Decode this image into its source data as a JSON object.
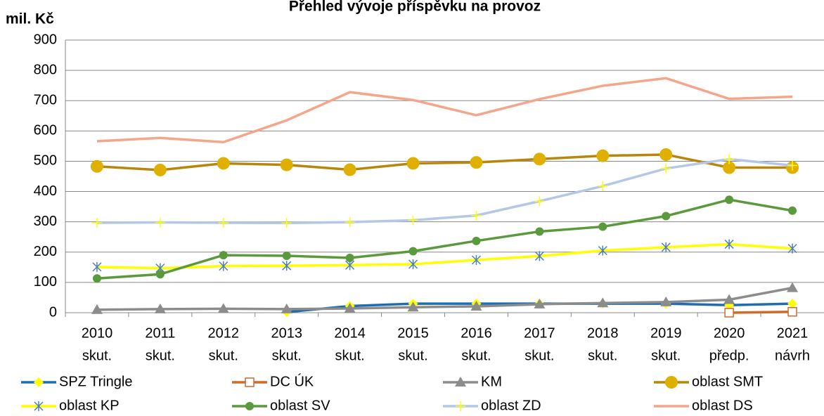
{
  "chart_data": {
    "type": "line",
    "title": "Přehled vývoje příspěvku na provoz",
    "y_label": "mil. Kč",
    "categories": [
      [
        "2010",
        "skut."
      ],
      [
        "2011",
        "skut."
      ],
      [
        "2012",
        "skut."
      ],
      [
        "2013",
        "skut."
      ],
      [
        "2014",
        "skut."
      ],
      [
        "2015",
        "skut."
      ],
      [
        "2016",
        "skut."
      ],
      [
        "2017",
        "skut."
      ],
      [
        "2018",
        "skut."
      ],
      [
        "2019",
        "skut."
      ],
      [
        "2020",
        "předp."
      ],
      [
        "2021",
        "návrh"
      ]
    ],
    "ylim": [
      0,
      900
    ],
    "yticks": [
      0,
      100,
      200,
      300,
      400,
      500,
      600,
      700,
      800,
      900
    ],
    "grid": true,
    "series": [
      {
        "name": "SPZ Tringle",
        "color": "#1f6cb0",
        "marker": "diamond",
        "marker_color": "#ffff00",
        "values": [
          null,
          null,
          null,
          2,
          22,
          30,
          30,
          30,
          30,
          30,
          25,
          30
        ]
      },
      {
        "name": "DC ÚK",
        "color": "#d0692a",
        "marker": "square",
        "marker_color": "#d0692a",
        "values": [
          null,
          null,
          null,
          null,
          null,
          null,
          null,
          null,
          null,
          null,
          0,
          3
        ]
      },
      {
        "name": "KM",
        "color": "#8c8c8c",
        "marker": "triangle",
        "marker_color": "#8c8c8c",
        "values": [
          10,
          12,
          13,
          12,
          14,
          18,
          21,
          28,
          32,
          35,
          43,
          82
        ]
      },
      {
        "name": "oblast SMT",
        "color": "#b8860b",
        "marker": "circle-big",
        "marker_color": "#e0b000",
        "values": [
          483,
          471,
          493,
          488,
          472,
          493,
          496,
          507,
          518,
          522,
          479,
          479
        ]
      },
      {
        "name": "oblast KP",
        "color": "#ffff00",
        "marker": "asterisk",
        "marker_color": "#4a7ebb",
        "values": [
          151,
          147,
          154,
          155,
          157,
          160,
          174,
          187,
          205,
          216,
          226,
          212
        ]
      },
      {
        "name": "oblast SV",
        "color": "#5a9a3c",
        "marker": "circle",
        "marker_color": "#5a9a3c",
        "values": [
          113,
          127,
          190,
          188,
          181,
          203,
          237,
          268,
          284,
          319,
          373,
          337
        ]
      },
      {
        "name": "oblast ZD",
        "color": "#b4c7e7",
        "marker": "plus",
        "marker_color": "#ffff00",
        "values": [
          297,
          298,
          297,
          296,
          299,
          305,
          321,
          368,
          418,
          476,
          507,
          486
        ]
      },
      {
        "name": "oblast DS",
        "color": "#f4a58a",
        "marker": "none",
        "marker_color": "#f4a58a",
        "values": [
          566,
          577,
          563,
          635,
          728,
          702,
          652,
          705,
          749,
          774,
          706,
          713
        ]
      }
    ]
  }
}
